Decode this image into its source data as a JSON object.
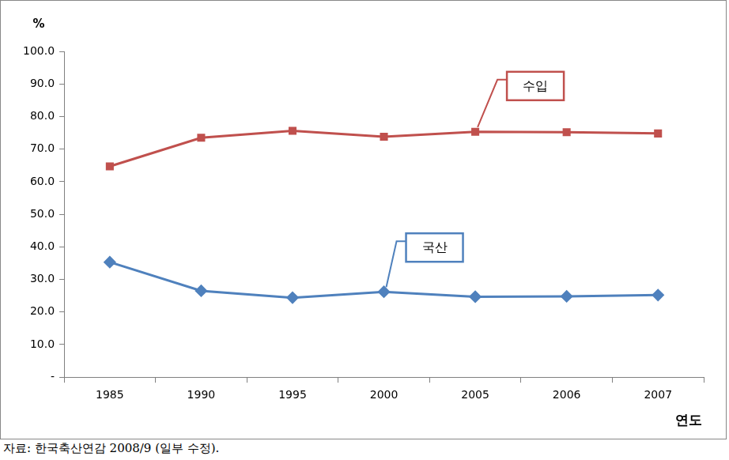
{
  "chart_data": {
    "type": "line",
    "categories": [
      "1985",
      "1990",
      "1995",
      "2000",
      "2005",
      "2006",
      "2007"
    ],
    "series": [
      {
        "name": "수입",
        "color": "#c0504d",
        "marker": "square",
        "values": [
          64.7,
          73.5,
          75.6,
          73.8,
          75.3,
          75.2,
          74.8
        ]
      },
      {
        "name": "국산",
        "color": "#4f81bd",
        "marker": "diamond",
        "values": [
          35.3,
          26.5,
          24.4,
          26.2,
          24.7,
          24.8,
          25.2
        ]
      }
    ],
    "y_label": "%",
    "x_label": "연도",
    "source": "자료: 한국축산연감 2008/9 (일부 수정).",
    "ylim": [
      0,
      100
    ],
    "yticks": [
      {
        "value": 0,
        "label": "-"
      },
      {
        "value": 10,
        "label": "10.0"
      },
      {
        "value": 20,
        "label": "20.0"
      },
      {
        "value": 30,
        "label": "30.0"
      },
      {
        "value": 40,
        "label": "40.0"
      },
      {
        "value": 50,
        "label": "50.0"
      },
      {
        "value": 60,
        "label": "60.0"
      },
      {
        "value": 70,
        "label": "70.0"
      },
      {
        "value": 80,
        "label": "80.0"
      },
      {
        "value": 90,
        "label": "90.0"
      },
      {
        "value": 100,
        "label": "100.0"
      }
    ],
    "grid": false
  }
}
